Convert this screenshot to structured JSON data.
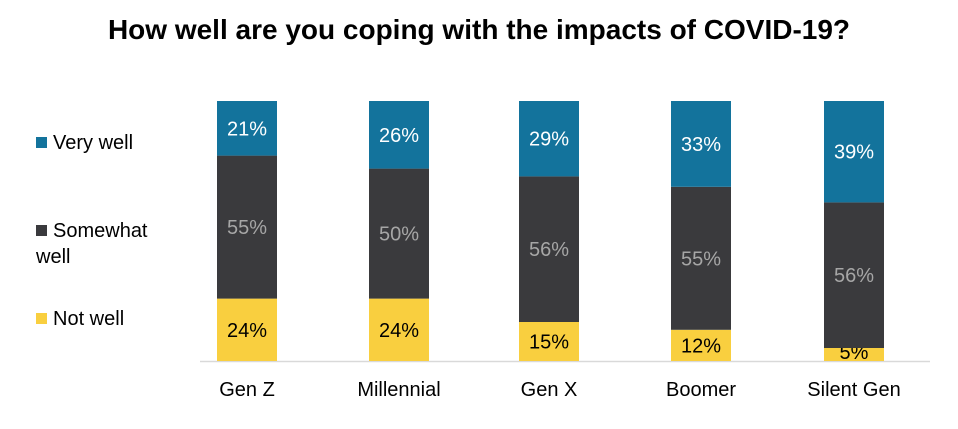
{
  "chart_data": {
    "type": "bar",
    "stacked": true,
    "title": "How well are you coping with the impacts of COVID-19?",
    "xlabel": "",
    "ylabel": "",
    "categories": [
      "Gen Z",
      "Millennial",
      "Gen X",
      "Boomer",
      "Silent Gen"
    ],
    "series": [
      {
        "name": "Not well",
        "color": "#f9cf3f",
        "label_color": "#000000",
        "values": [
          24,
          24,
          15,
          12,
          5
        ]
      },
      {
        "name": "Somewhat well",
        "color": "#3a3a3d",
        "label_color": "#a6a6a6",
        "values": [
          55,
          50,
          56,
          55,
          56
        ]
      },
      {
        "name": "Very well",
        "color": "#13739c",
        "label_color": "#ffffff",
        "values": [
          21,
          26,
          29,
          33,
          39
        ]
      }
    ],
    "value_format": "percent",
    "grid": false,
    "legend_placement": "left"
  }
}
